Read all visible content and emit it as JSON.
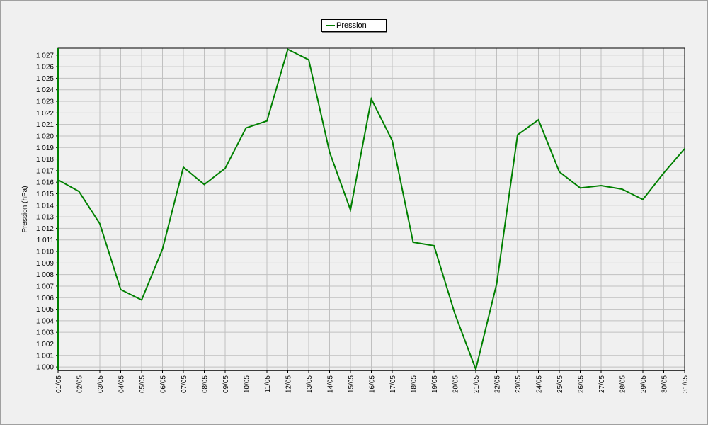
{
  "chart_data": {
    "type": "line",
    "title": "",
    "xlabel": "",
    "ylabel": "Pression (hPa)",
    "ylim": [
      1000,
      1027
    ],
    "grid": true,
    "legend_position": "top-center",
    "categories": [
      "01/05",
      "02/05",
      "03/05",
      "04/05",
      "05/05",
      "06/05",
      "07/05",
      "08/05",
      "09/05",
      "10/05",
      "11/05",
      "12/05",
      "13/05",
      "14/05",
      "15/05",
      "16/05",
      "17/05",
      "18/05",
      "19/05",
      "20/05",
      "21/05",
      "22/05",
      "23/05",
      "24/05",
      "25/05",
      "26/05",
      "27/05",
      "28/05",
      "29/05",
      "30/05",
      "31/05"
    ],
    "y_ticks": [
      "1 000",
      "1 001",
      "1 002",
      "1 003",
      "1 004",
      "1 005",
      "1 006",
      "1 007",
      "1 008",
      "1 009",
      "1 010",
      "1 011",
      "1 012",
      "1 013",
      "1 014",
      "1 015",
      "1 016",
      "1 017",
      "1 018",
      "1 019",
      "1 020",
      "1 021",
      "1 022",
      "1 023",
      "1 024",
      "1 025",
      "1 026",
      "1 027"
    ],
    "series": [
      {
        "name": "Pression",
        "color": "#008000",
        "values": [
          1016.2,
          1015.2,
          1012.4,
          1006.7,
          1005.8,
          1010.2,
          1017.3,
          1015.8,
          1017.2,
          1020.7,
          1021.3,
          1027.5,
          1026.6,
          1018.6,
          1013.6,
          1023.2,
          1019.6,
          1010.8,
          1010.5,
          1004.6,
          999.8,
          1007.2,
          1020.1,
          1021.4,
          1016.9,
          1015.5,
          1015.7,
          1015.4,
          1014.5,
          1016.8,
          1018.9
        ]
      }
    ]
  },
  "legend": {
    "label": "Pression",
    "marker": "—"
  }
}
